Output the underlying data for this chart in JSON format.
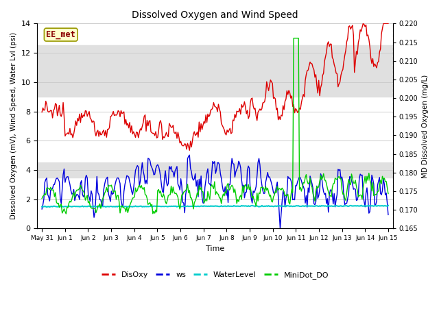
{
  "title": "Dissolved Oxygen and Wind Speed",
  "xlabel": "Time",
  "ylabel_left": "Dissolved Oxygen (mV), Wind Speed, Water Lvl (psi)",
  "ylabel_right": "MD Dissolved Oxygen (mg/L)",
  "ylim_left": [
    0,
    14
  ],
  "ylim_right": [
    0.165,
    0.22
  ],
  "yticks_left": [
    0,
    2,
    4,
    6,
    8,
    10,
    12,
    14
  ],
  "yticks_right": [
    0.165,
    0.17,
    0.175,
    0.18,
    0.185,
    0.19,
    0.195,
    0.2,
    0.205,
    0.21,
    0.215,
    0.22
  ],
  "colors": {
    "DisOxy": "#dd0000",
    "ws": "#0000dd",
    "WaterLevel": "#00cccc",
    "MiniDot_DO": "#00cc00"
  },
  "annotation_text": "EE_met",
  "annotation_color": "#8b0000",
  "annotation_bg": "#ffffcc",
  "annotation_border": "#999900",
  "bg_band_upper": [
    9.0,
    12.5
  ],
  "bg_band_lower": [
    3.5,
    4.5
  ],
  "xmin_days": -0.2,
  "xmax_days": 15.2,
  "xtick_positions": [
    0,
    1,
    2,
    3,
    4,
    5,
    6,
    7,
    8,
    9,
    10,
    11,
    12,
    13,
    14,
    15
  ],
  "xtick_labels": [
    "May 31",
    "Jun 1",
    "Jun 2",
    "Jun 3",
    "Jun 4",
    "Jun 5",
    "Jun 6",
    "Jun 7",
    "Jun 8",
    "Jun 9",
    "Jun 10",
    "Jun 11",
    "Jun 12",
    "Jun 13",
    "Jun 14",
    "Jun 15"
  ]
}
